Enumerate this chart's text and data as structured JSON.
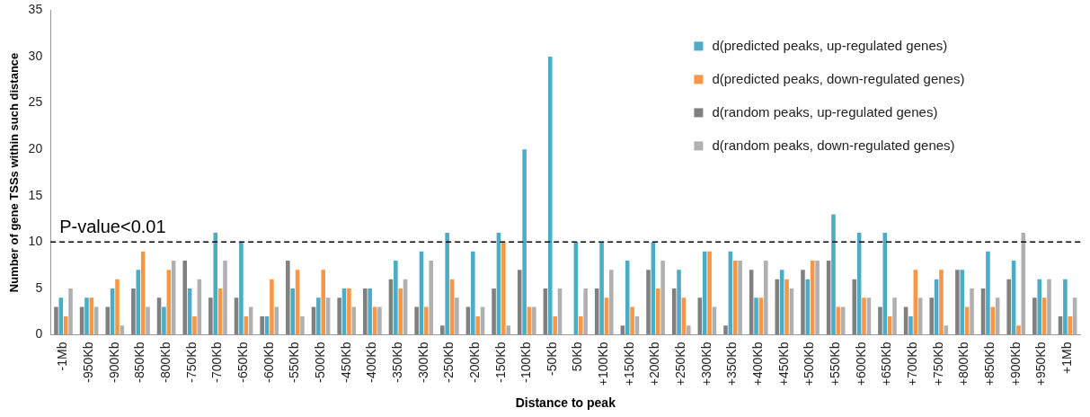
{
  "chart_data": {
    "type": "bar",
    "xlabel": "Distance to peak",
    "ylabel": "Number of gene TSSs within such distance",
    "categories": [
      "-1Mb",
      "-950Kb",
      "-900Kb",
      "-850Kb",
      "-800Kb",
      "-750Kb",
      "-700Kb",
      "-650Kb",
      "-600Kb",
      "-550Kb",
      "-500Kb",
      "-450Kb",
      "-400Kb",
      "-350Kb",
      "-300Kb",
      "-250Kb",
      "-200Kb",
      "-150Kb",
      "-100Kb",
      "-50Kb",
      "50Kb",
      "+100Kb",
      "+150Kb",
      "+200Kb",
      "+250Kb",
      "+300Kb",
      "+350Kb",
      "+400Kb",
      "+450Kb",
      "+500Kb",
      "+550Kb",
      "+600Kb",
      "+650Kb",
      "+700Kb",
      "+750Kb",
      "+800Kb",
      "+850Kb",
      "+900Kb",
      "+950Kb",
      "+1Mb"
    ],
    "series": [
      {
        "name": "d(predicted peaks, up-regulated genes)",
        "color": "#4bacc6",
        "values": [
          4,
          4,
          5,
          7,
          3,
          5,
          11,
          10,
          2,
          5,
          4,
          5,
          5,
          8,
          9,
          11,
          9,
          11,
          20,
          30,
          10,
          10,
          8,
          10,
          7,
          9,
          9,
          4,
          7,
          6,
          13,
          11,
          11,
          2,
          6,
          7,
          9,
          8,
          6,
          6
        ]
      },
      {
        "name": "d(predicted peaks, down-regulated genes)",
        "color": "#f79646",
        "values": [
          2,
          4,
          6,
          9,
          7,
          2,
          5,
          2,
          6,
          7,
          7,
          5,
          3,
          5,
          3,
          6,
          2,
          10,
          3,
          2,
          2,
          4,
          3,
          5,
          4,
          9,
          8,
          4,
          6,
          8,
          3,
          4,
          2,
          7,
          7,
          3,
          3,
          1,
          4,
          2
        ]
      },
      {
        "name": "d(random peaks, up-regulated genes)",
        "color": "#808080",
        "values": [
          3,
          3,
          3,
          5,
          4,
          8,
          4,
          4,
          2,
          8,
          3,
          4,
          5,
          6,
          3,
          1,
          3,
          5,
          7,
          5,
          0,
          5,
          1,
          7,
          5,
          4,
          1,
          7,
          6,
          7,
          8,
          6,
          3,
          3,
          4,
          7,
          5,
          6,
          4,
          2
        ]
      },
      {
        "name": "d(random peaks, down-regulated genes)",
        "color": "#b0b0b0",
        "values": [
          5,
          3,
          1,
          3,
          8,
          6,
          8,
          3,
          3,
          2,
          4,
          3,
          3,
          6,
          8,
          4,
          3,
          1,
          3,
          5,
          5,
          7,
          2,
          8,
          1,
          3,
          8,
          8,
          5,
          8,
          3,
          4,
          4,
          4,
          1,
          5,
          4,
          11,
          6,
          4
        ]
      }
    ],
    "ylim": [
      0,
      35
    ],
    "yticks": [
      0,
      5,
      10,
      15,
      20,
      25,
      30,
      35
    ],
    "grid": false,
    "legend": "top right",
    "ref_lines": [
      {
        "axis": "y",
        "value": 10,
        "label": "P-value<0.01",
        "color": "#000000",
        "line_style": "dashed"
      }
    ]
  }
}
